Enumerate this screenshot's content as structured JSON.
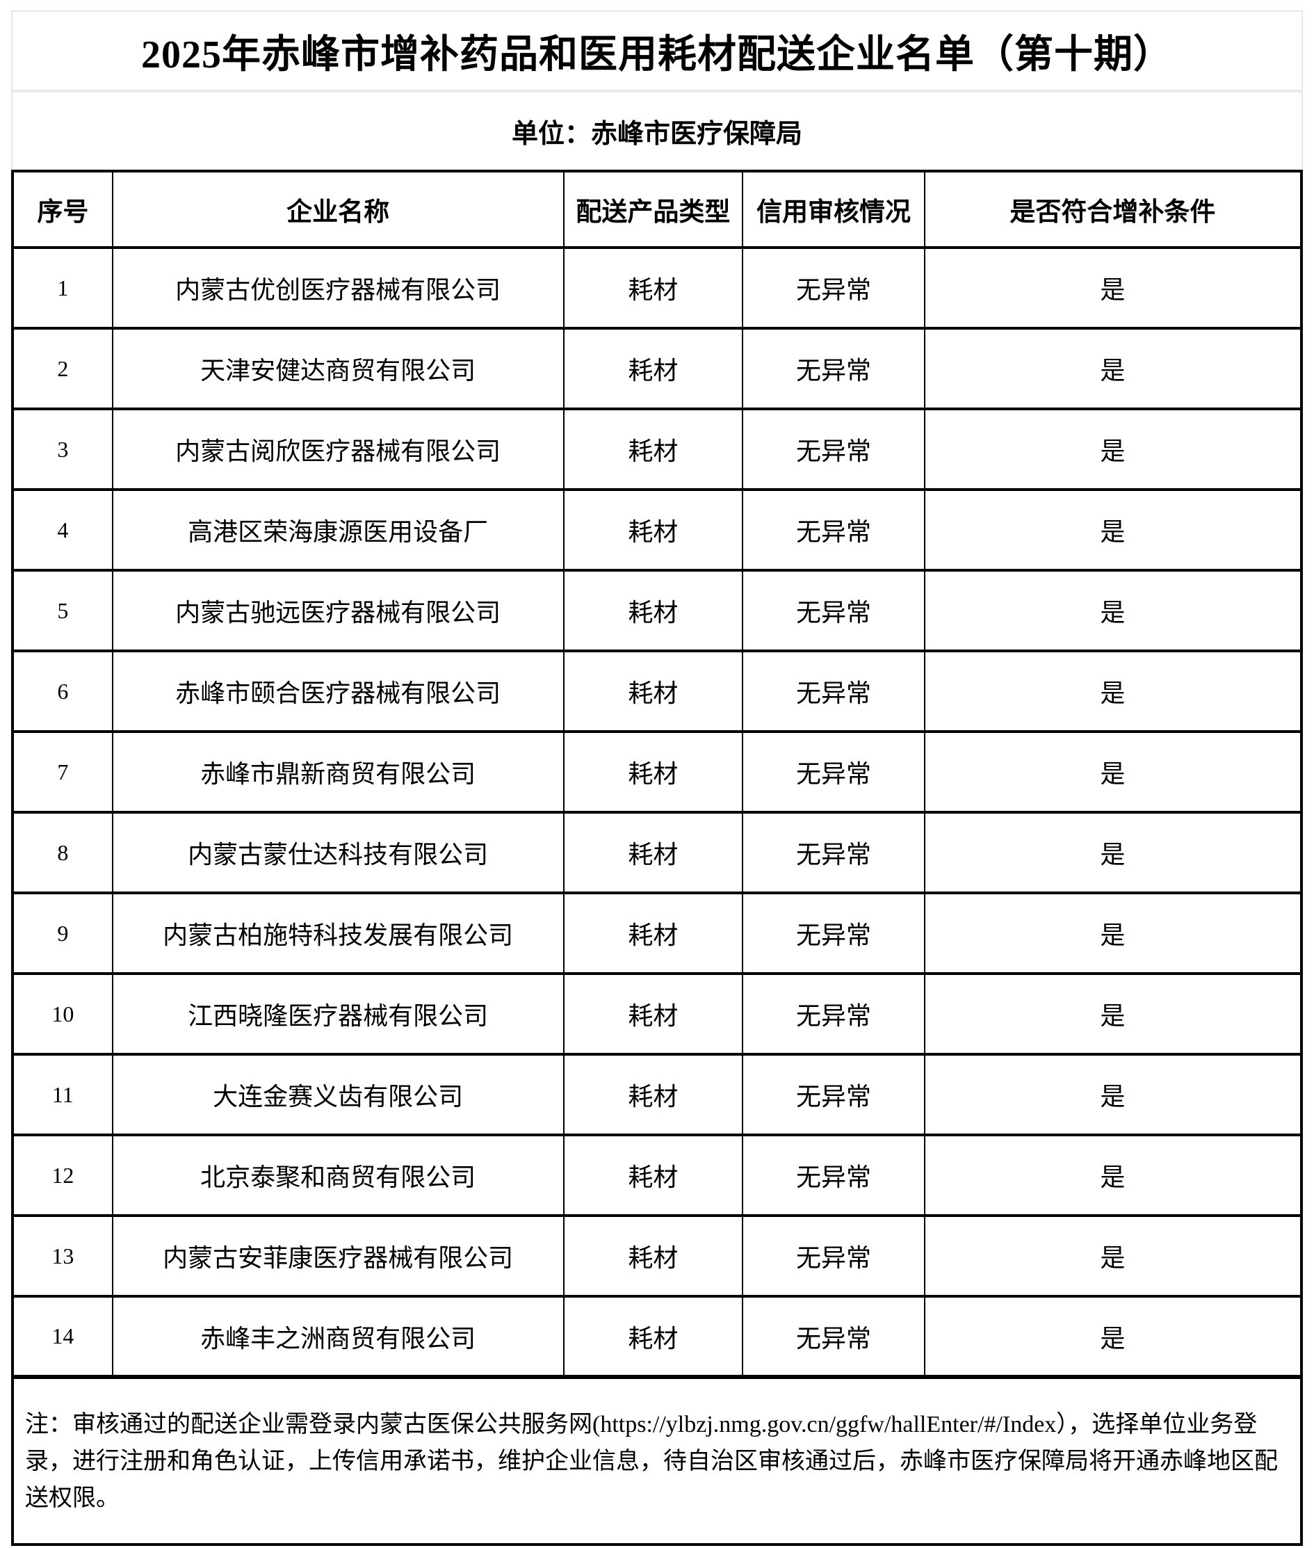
{
  "page": {
    "title": "2025年赤峰市增补药品和医用耗材配送企业名单（第十期）",
    "unit": "单位：赤峰市医疗保障局"
  },
  "table": {
    "headers": [
      "序号",
      "企业名称",
      "配送产品类型",
      "信用审核情况",
      "是否符合增补条件"
    ],
    "rows": [
      {
        "no": "1",
        "name": "内蒙古优创医疗器械有限公司",
        "type": "耗材",
        "credit": "无异常",
        "qualified": "是"
      },
      {
        "no": "2",
        "name": "天津安健达商贸有限公司",
        "type": "耗材",
        "credit": "无异常",
        "qualified": "是"
      },
      {
        "no": "3",
        "name": "内蒙古阅欣医疗器械有限公司",
        "type": "耗材",
        "credit": "无异常",
        "qualified": "是"
      },
      {
        "no": "4",
        "name": "高港区荣海康源医用设备厂",
        "type": "耗材",
        "credit": "无异常",
        "qualified": "是"
      },
      {
        "no": "5",
        "name": "内蒙古驰远医疗器械有限公司",
        "type": "耗材",
        "credit": "无异常",
        "qualified": "是"
      },
      {
        "no": "6",
        "name": "赤峰市颐合医疗器械有限公司",
        "type": "耗材",
        "credit": "无异常",
        "qualified": "是"
      },
      {
        "no": "7",
        "name": "赤峰市鼎新商贸有限公司",
        "type": "耗材",
        "credit": "无异常",
        "qualified": "是"
      },
      {
        "no": "8",
        "name": "内蒙古蒙仕达科技有限公司",
        "type": "耗材",
        "credit": "无异常",
        "qualified": "是"
      },
      {
        "no": "9",
        "name": "内蒙古柏施特科技发展有限公司",
        "type": "耗材",
        "credit": "无异常",
        "qualified": "是"
      },
      {
        "no": "10",
        "name": "江西晓隆医疗器械有限公司",
        "type": "耗材",
        "credit": "无异常",
        "qualified": "是"
      },
      {
        "no": "11",
        "name": "大连金赛义齿有限公司",
        "type": "耗材",
        "credit": "无异常",
        "qualified": "是"
      },
      {
        "no": "12",
        "name": "北京泰聚和商贸有限公司",
        "type": "耗材",
        "credit": "无异常",
        "qualified": "是"
      },
      {
        "no": "13",
        "name": "内蒙古安菲康医疗器械有限公司",
        "type": "耗材",
        "credit": "无异常",
        "qualified": "是"
      },
      {
        "no": "14",
        "name": "赤峰丰之洲商贸有限公司",
        "type": "耗材",
        "credit": "无异常",
        "qualified": "是"
      }
    ]
  },
  "note": {
    "text": "注：审核通过的配送企业需登录内蒙古医保公共服务网(https://ylbzj.nmg.gov.cn/ggfw/hallEnter/#/Index），选择单位业务登录，进行注册和角色认证，上传信用承诺书，维护企业信息，待自治区审核通过后，赤峰市医疗保障局将开通赤峰地区配送权限。"
  }
}
